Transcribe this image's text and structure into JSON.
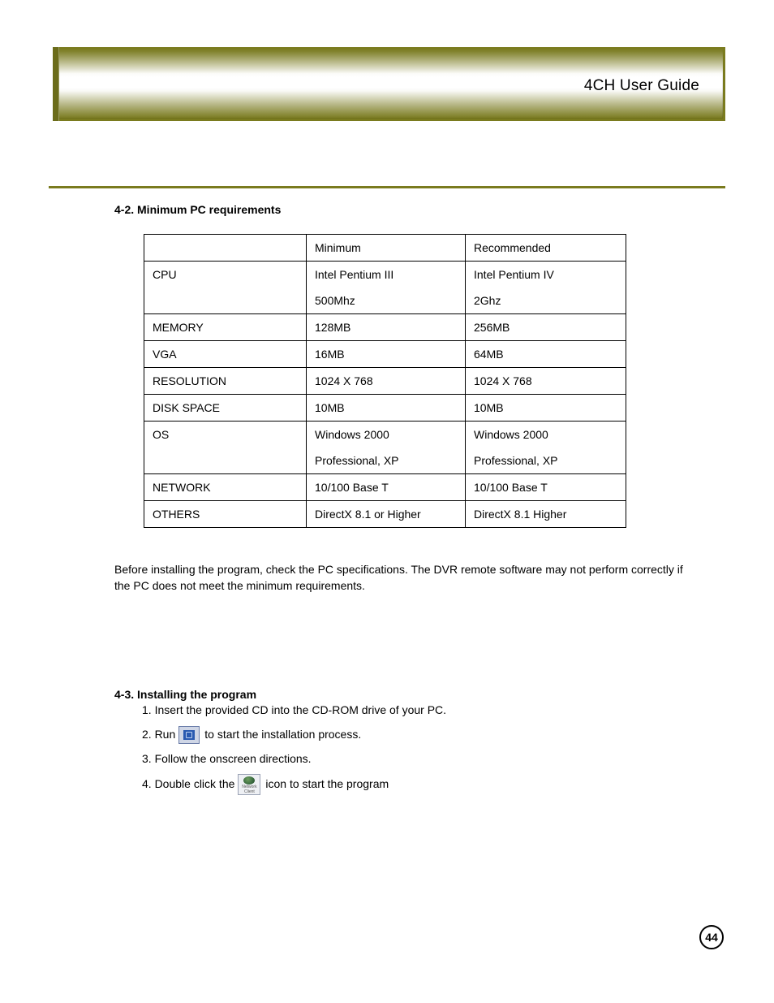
{
  "header": {
    "title": "4CH User Guide"
  },
  "divider": {
    "color": "#7a7b1e"
  },
  "section42": {
    "heading": "4-2. Minimum PC requirements",
    "table": {
      "rows": [
        [
          "",
          "Minimum",
          "Recommended"
        ],
        [
          "CPU",
          "Intel Pentium III",
          "Intel Pentium IV"
        ],
        [
          "",
          "500Mhz",
          "2Ghz"
        ],
        [
          "MEMORY",
          "128MB",
          "256MB"
        ],
        [
          "VGA",
          "16MB",
          "64MB"
        ],
        [
          "RESOLUTION",
          "1024 X 768",
          "1024 X 768"
        ],
        [
          "DISK SPACE",
          "10MB",
          "10MB"
        ],
        [
          "OS",
          "Windows 2000",
          "Windows 2000"
        ],
        [
          "",
          "Professional, XP",
          "Professional, XP"
        ],
        [
          "NETWORK",
          "10/100 Base T",
          "10/100 Base T"
        ],
        [
          "OTHERS",
          "DirectX 8.1 or Higher",
          "DirectX 8.1 Higher"
        ]
      ],
      "merged_row_groups": [
        [
          1,
          2
        ],
        [
          7,
          8
        ]
      ]
    },
    "note": "Before installing the program, check the PC specifications. The DVR remote software may not perform correctly if the PC does not meet the minimum requirements."
  },
  "section43": {
    "heading": "4-3. Installing the program",
    "step1": "1. Insert the provided CD into the CD-ROM drive of your PC.",
    "step2_pre": "2. Run",
    "step2_post": "to start the installation process.",
    "step3": "3. Follow the onscreen directions.",
    "step4_pre": "4. Double click the",
    "step4_post": "icon to start the program",
    "icon1_alt": "installer-icon",
    "icon2_alt": "network-client-icon",
    "icon2_caption_a": "Network",
    "icon2_caption_b": "Client"
  },
  "page_number": "44",
  "colors": {
    "olive": "#7a7b1e",
    "text": "#000000",
    "table_border": "#000000"
  },
  "typography": {
    "body_fontsize_pt": 11,
    "heading_weight": "bold"
  }
}
